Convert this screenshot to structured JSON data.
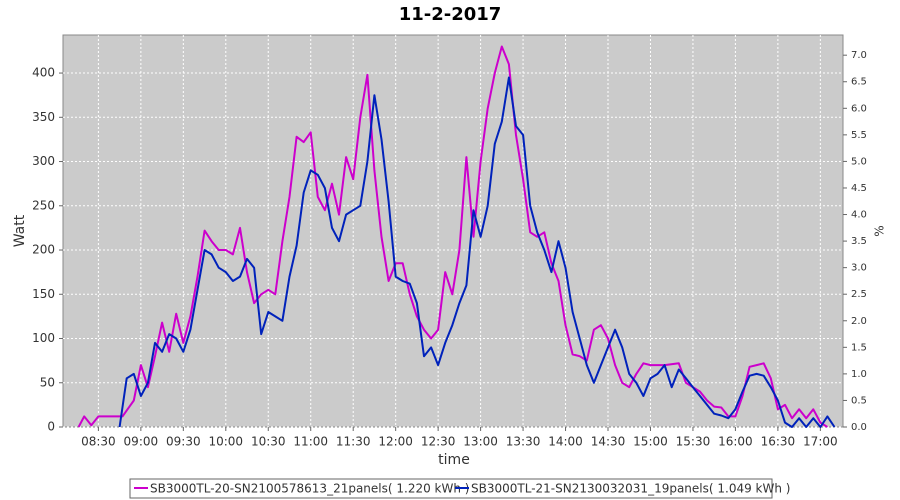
{
  "chart_data": {
    "type": "line",
    "title": "11-2-2017",
    "xlabel": "time",
    "ylabel": "Watt",
    "y2label": "%",
    "xlim": [
      485,
      1036
    ],
    "ylim": [
      0,
      443
    ],
    "y2lim": [
      0,
      7.38
    ],
    "xticks": [
      {
        "value": 510,
        "label": "08:30"
      },
      {
        "value": 540,
        "label": "09:00"
      },
      {
        "value": 570,
        "label": "09:30"
      },
      {
        "value": 600,
        "label": "10:00"
      },
      {
        "value": 630,
        "label": "10:30"
      },
      {
        "value": 660,
        "label": "11:00"
      },
      {
        "value": 690,
        "label": "11:30"
      },
      {
        "value": 720,
        "label": "12:00"
      },
      {
        "value": 750,
        "label": "12:30"
      },
      {
        "value": 780,
        "label": "13:00"
      },
      {
        "value": 810,
        "label": "13:30"
      },
      {
        "value": 840,
        "label": "14:00"
      },
      {
        "value": 870,
        "label": "14:30"
      },
      {
        "value": 900,
        "label": "15:00"
      },
      {
        "value": 930,
        "label": "15:30"
      },
      {
        "value": 960,
        "label": "16:00"
      },
      {
        "value": 990,
        "label": "16:30"
      },
      {
        "value": 1020,
        "label": "17:00"
      }
    ],
    "yticks": [
      0,
      50,
      100,
      150,
      200,
      250,
      300,
      350,
      400
    ],
    "y2ticks": [
      {
        "value": 0,
        "label": "0.0"
      },
      0.5,
      {
        "value": 1,
        "label": "1.0"
      },
      1.5,
      {
        "value": 2,
        "label": "2.0"
      },
      2.5,
      {
        "value": 3,
        "label": "3.0"
      },
      3.5,
      {
        "value": 4,
        "label": "4.0"
      },
      4.5,
      {
        "value": 5,
        "label": "5.0"
      },
      5.5,
      {
        "value": 6,
        "label": "6.0"
      },
      6.5,
      {
        "value": 7,
        "label": "7.0"
      }
    ],
    "grid": true,
    "series": [
      {
        "name": "SB3000TL-20-SN2100578613_21panels( 1.220 kWh )",
        "color": "#cc00cc",
        "x": [
          496,
          500,
          505,
          510,
          520,
          527,
          535,
          540,
          545,
          550,
          555,
          560,
          565,
          570,
          575,
          580,
          585,
          590,
          595,
          600,
          605,
          610,
          615,
          620,
          625,
          630,
          635,
          640,
          645,
          650,
          655,
          660,
          665,
          670,
          675,
          680,
          685,
          690,
          695,
          700,
          705,
          710,
          715,
          720,
          725,
          730,
          735,
          740,
          745,
          750,
          755,
          760,
          765,
          770,
          775,
          780,
          785,
          790,
          795,
          800,
          805,
          810,
          815,
          820,
          825,
          830,
          835,
          840,
          845,
          850,
          855,
          860,
          865,
          870,
          875,
          880,
          885,
          890,
          895,
          900,
          910,
          920,
          925,
          930,
          935,
          940,
          945,
          950,
          955,
          960,
          965,
          970,
          975,
          980,
          985,
          990,
          995,
          1000,
          1005,
          1010,
          1015,
          1020,
          1025
        ],
        "values": [
          0,
          12,
          2,
          12,
          12,
          12,
          30,
          70,
          45,
          80,
          118,
          85,
          128,
          95,
          125,
          170,
          222,
          210,
          200,
          200,
          195,
          225,
          175,
          140,
          150,
          155,
          150,
          210,
          260,
          328,
          322,
          333,
          260,
          245,
          275,
          240,
          305,
          280,
          350,
          398,
          290,
          215,
          165,
          185,
          185,
          150,
          125,
          110,
          100,
          110,
          175,
          150,
          200,
          305,
          215,
          300,
          360,
          400,
          430,
          410,
          330,
          280,
          220,
          215,
          220,
          185,
          165,
          115,
          82,
          80,
          75,
          110,
          115,
          100,
          70,
          50,
          45,
          60,
          72,
          70,
          70,
          72,
          50,
          45,
          40,
          30,
          23,
          22,
          12,
          12,
          35,
          68,
          70,
          72,
          55,
          20,
          25,
          10,
          20,
          10,
          20,
          5,
          0
        ]
      },
      {
        "name": "SB3000TL-21-SN2130032031_19panels( 1.049 kWh )",
        "color": "#0022bb",
        "x": [
          525,
          530,
          535,
          540,
          545,
          550,
          555,
          560,
          565,
          570,
          575,
          580,
          585,
          590,
          595,
          600,
          605,
          610,
          615,
          620,
          625,
          630,
          635,
          640,
          645,
          650,
          655,
          660,
          665,
          670,
          675,
          680,
          685,
          690,
          695,
          700,
          705,
          710,
          715,
          720,
          725,
          730,
          735,
          740,
          745,
          750,
          755,
          760,
          765,
          770,
          775,
          780,
          785,
          790,
          795,
          800,
          805,
          810,
          815,
          820,
          825,
          830,
          835,
          840,
          845,
          850,
          855,
          860,
          865,
          870,
          875,
          880,
          885,
          890,
          895,
          900,
          905,
          910,
          915,
          920,
          925,
          930,
          935,
          940,
          945,
          950,
          955,
          960,
          965,
          970,
          975,
          980,
          985,
          990,
          995,
          1000,
          1005,
          1010,
          1015,
          1020,
          1025,
          1030
        ],
        "values": [
          0,
          55,
          60,
          35,
          50,
          95,
          85,
          105,
          100,
          85,
          110,
          155,
          200,
          195,
          180,
          175,
          165,
          170,
          190,
          180,
          105,
          130,
          125,
          120,
          170,
          205,
          265,
          290,
          285,
          270,
          225,
          210,
          240,
          245,
          250,
          300,
          375,
          325,
          255,
          170,
          165,
          162,
          140,
          80,
          90,
          70,
          95,
          115,
          140,
          160,
          245,
          215,
          250,
          320,
          345,
          395,
          340,
          330,
          250,
          220,
          200,
          175,
          210,
          180,
          130,
          100,
          70,
          50,
          70,
          90,
          110,
          90,
          60,
          50,
          35,
          55,
          60,
          70,
          45,
          65,
          55,
          45,
          35,
          25,
          15,
          13,
          10,
          20,
          40,
          58,
          60,
          58,
          45,
          30,
          5,
          0,
          10,
          0,
          10,
          0,
          12,
          0
        ]
      }
    ]
  }
}
